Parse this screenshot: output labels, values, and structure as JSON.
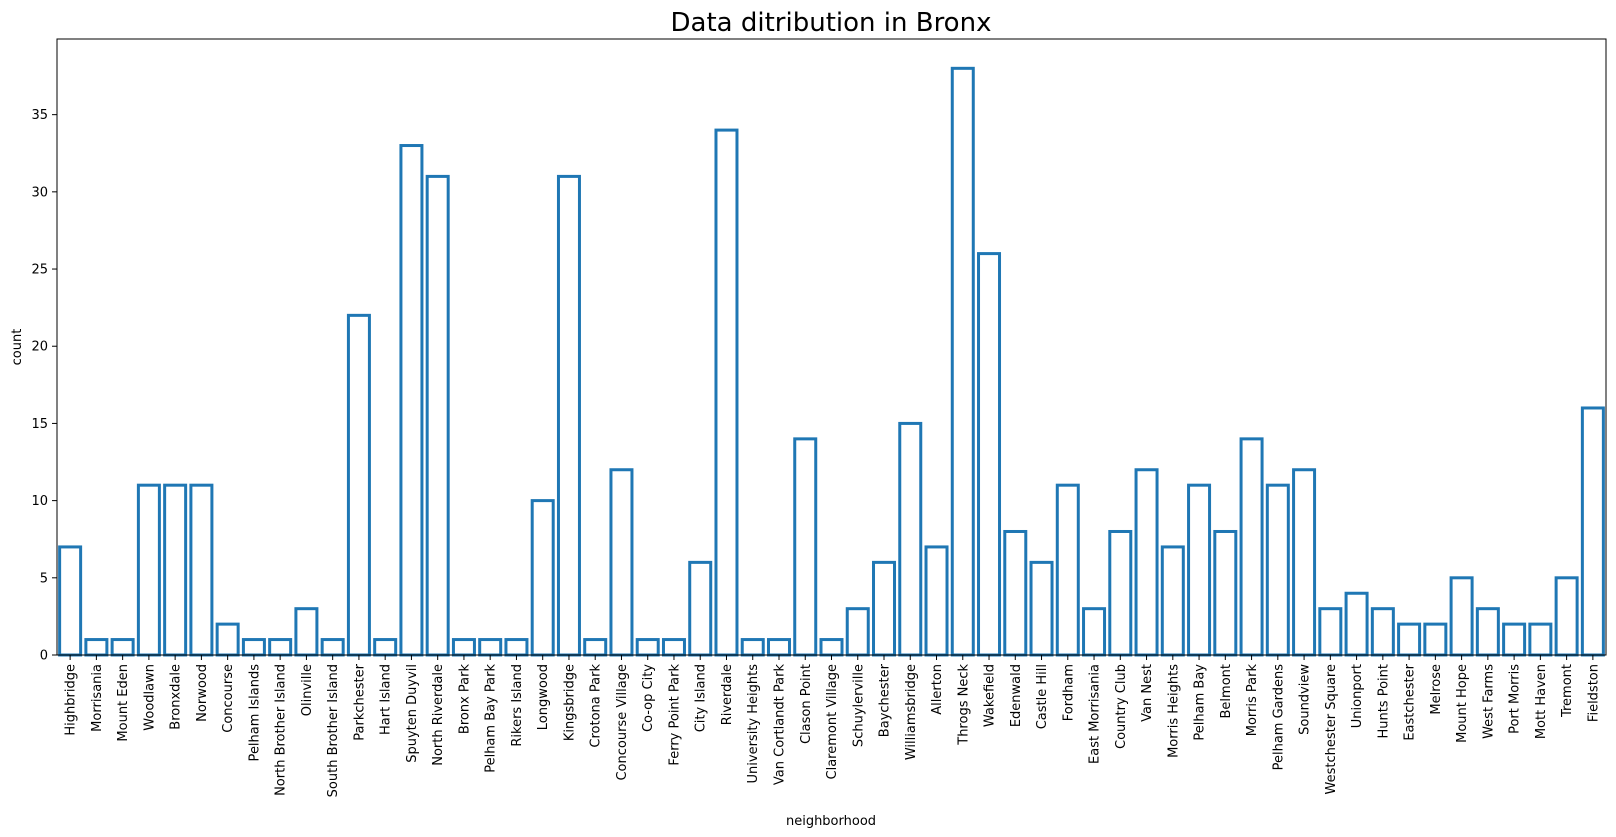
{
  "chart_data": {
    "type": "bar",
    "title": "Data ditribution in Bronx",
    "xlabel": "neighborhood",
    "ylabel": "count",
    "ylim": [
      0,
      40
    ],
    "yticks": [
      0,
      5,
      10,
      15,
      20,
      25,
      30,
      35
    ],
    "grid": false,
    "bar_style": "outline",
    "colors": {
      "bar_edge": "#1f77b4",
      "bar_fill": "none"
    },
    "categories": [
      "Highbridge",
      "Morrisania",
      "Mount Eden",
      "Woodlawn",
      "Bronxdale",
      "Norwood",
      "Concourse",
      "Pelham Islands",
      "North Brother Island",
      "Olinville",
      "South Brother Island",
      "Parkchester",
      "Hart Island",
      "Spuyten Duyvil",
      "North Riverdale",
      "Bronx Park",
      "Pelham Bay Park",
      "Rikers Island",
      "Longwood",
      "Kingsbridge",
      "Crotona Park",
      "Concourse Village",
      "Co-op City",
      "Ferry Point Park",
      "City Island",
      "Riverdale",
      "University Heights",
      "Van Cortlandt Park",
      "Clason Point",
      "Claremont Village",
      "Schuylerville",
      "Baychester",
      "Williamsbridge",
      "Allerton",
      "Throgs Neck",
      "Wakefield",
      "Edenwald",
      "Castle Hill",
      "Fordham",
      "East Morrisania",
      "Country Club",
      "Van Nest",
      "Morris Heights",
      "Pelham Bay",
      "Belmont",
      "Morris Park",
      "Pelham Gardens",
      "Soundview",
      "Westchester Square",
      "Unionport",
      "Hunts Point",
      "Eastchester",
      "Melrose",
      "Mount Hope",
      "West Farms",
      "Port Morris",
      "Mott Haven",
      "Tremont",
      "Fieldston"
    ],
    "values": [
      7,
      1,
      1,
      11,
      11,
      11,
      2,
      1,
      1,
      3,
      1,
      22,
      1,
      33,
      31,
      1,
      1,
      1,
      10,
      31,
      1,
      12,
      1,
      1,
      6,
      34,
      1,
      1,
      14,
      1,
      3,
      6,
      15,
      7,
      38,
      26,
      8,
      6,
      11,
      3,
      8,
      12,
      7,
      11,
      8,
      14,
      11,
      12,
      3,
      4,
      3,
      2,
      2,
      5,
      3,
      2,
      2,
      5,
      16
    ]
  }
}
